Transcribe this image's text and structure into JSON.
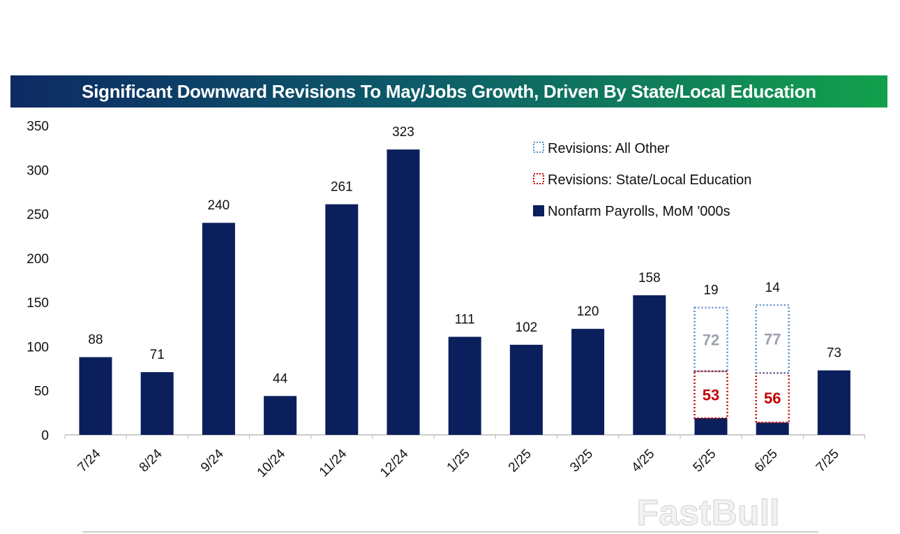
{
  "chart_data": {
    "type": "bar",
    "title": "Significant Downward Revisions To May/Jobs Growth, Driven By State/Local Education",
    "categories": [
      "7/24",
      "8/24",
      "9/24",
      "10/24",
      "11/24",
      "12/24",
      "1/25",
      "2/25",
      "3/25",
      "4/25",
      "5/25",
      "6/25",
      "7/25"
    ],
    "series": [
      {
        "name": "Nonfarm Payrolls, MoM '000s",
        "values": [
          88,
          71,
          240,
          44,
          261,
          323,
          111,
          102,
          120,
          158,
          19,
          14,
          73
        ],
        "color": "#0b1f5c",
        "style": "solid"
      },
      {
        "name": "Revisions: State/Local Education",
        "values": [
          0,
          0,
          0,
          0,
          0,
          0,
          0,
          0,
          0,
          0,
          53,
          56,
          0
        ],
        "color": "#c00000",
        "style": "dotted"
      },
      {
        "name": "Revisions: All Other",
        "values": [
          0,
          0,
          0,
          0,
          0,
          0,
          0,
          0,
          0,
          0,
          72,
          77,
          0
        ],
        "color": "#5b8ec9",
        "style": "dotted"
      }
    ],
    "ylim": [
      0,
      350
    ],
    "yticks": [
      0,
      50,
      100,
      150,
      200,
      250,
      300,
      350
    ],
    "legend": "top-right",
    "grid": false,
    "stacked": true
  },
  "watermark": "FastBull"
}
